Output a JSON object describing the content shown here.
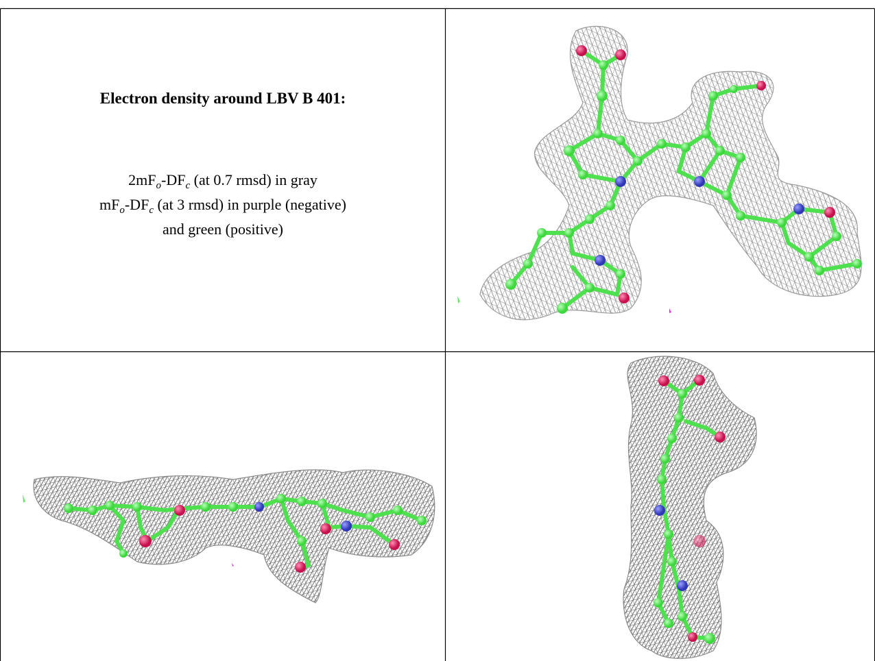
{
  "legend": {
    "title": "Electron density around LBV B 401:",
    "lines": [
      [
        "2mF",
        "o",
        "-DF",
        "c",
        " (at 0.7 rmsd) in gray"
      ],
      [
        "mF",
        "o",
        "-DF",
        "c",
        " (at 3 rmsd) in purple (negative)"
      ],
      [
        "and green (positive)"
      ]
    ]
  }
}
